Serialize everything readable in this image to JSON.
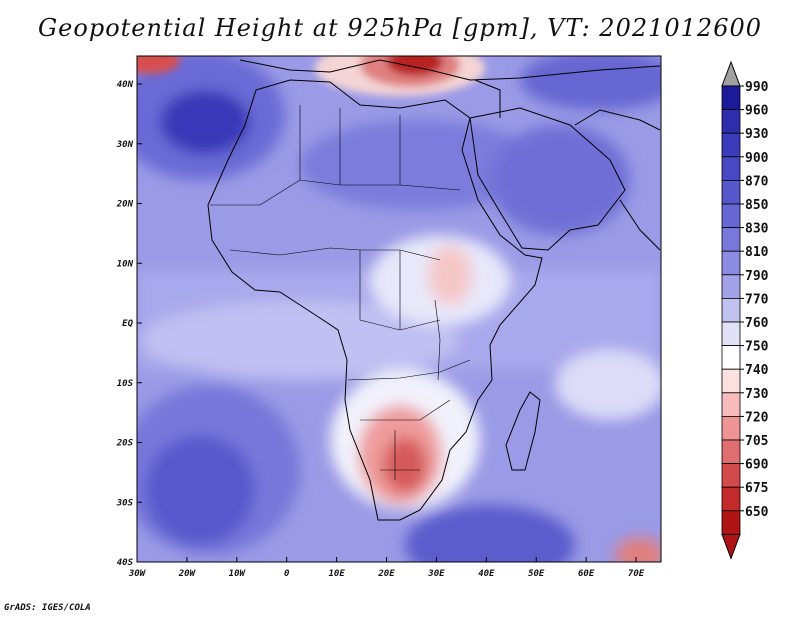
{
  "title": "Geopotential Height at 925hPa [gpm], VT: 2021012600",
  "credit": "GrADS: IGES/COLA",
  "map": {
    "variable": "Geopotential Height",
    "level": "925hPa",
    "units": "gpm",
    "valid_time": "2021012600",
    "lon_labels": [
      "30W",
      "20W",
      "10W",
      "0",
      "10E",
      "20E",
      "30E",
      "40E",
      "50E",
      "60E",
      "70E"
    ],
    "lat_labels": [
      "40N",
      "30N",
      "20N",
      "10N",
      "EQ",
      "10S",
      "20S",
      "30S",
      "40S"
    ],
    "features": [
      {
        "name": "low-heights-southern-africa",
        "value_gpm": 710
      },
      {
        "name": "low-heights-east-africa",
        "value_gpm": 755
      },
      {
        "name": "low-heights-greece",
        "value_gpm": 720
      },
      {
        "name": "high-heights-azores",
        "value_gpm": 930
      },
      {
        "name": "high-heights-south-atlantic",
        "value_gpm": 870
      },
      {
        "name": "high-heights-south-indian-ocean",
        "value_gpm": 870
      }
    ]
  },
  "colorbar": {
    "levels": [
      "990",
      "960",
      "930",
      "900",
      "870",
      "850",
      "830",
      "810",
      "790",
      "770",
      "760",
      "750",
      "740",
      "730",
      "720",
      "705",
      "690",
      "675",
      "650"
    ],
    "colors": [
      "#1a1a9a",
      "#2e2ead",
      "#3b3bbb",
      "#4848c4",
      "#5757cc",
      "#6767d4",
      "#7878db",
      "#8b8be2",
      "#a2a2e9",
      "#c2c2f0",
      "#e2e2f7",
      "#ffffff",
      "#fde0e0",
      "#f7bbbb",
      "#ee9494",
      "#e06e6e",
      "#d24a4a",
      "#c32a2a",
      "#b01414"
    ],
    "cap_top_color": "#a0a0a0",
    "cap_bottom_color": "#b01414"
  }
}
